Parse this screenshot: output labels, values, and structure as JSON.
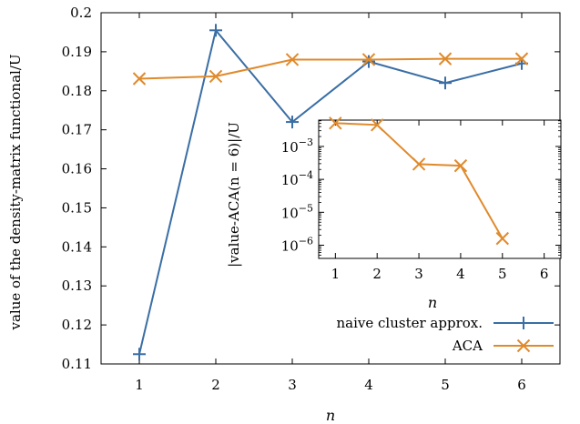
{
  "chart_data": [
    {
      "type": "line",
      "title": "",
      "xlabel": "n",
      "ylabel": "value of the density-matrix functional/U",
      "xlim": [
        0.5,
        6.5
      ],
      "ylim": [
        0.11,
        0.2
      ],
      "x_ticks": [
        "1",
        "2",
        "3",
        "4",
        "5",
        "6"
      ],
      "y_ticks": [
        "0.11",
        "0.12",
        "0.13",
        "0.14",
        "0.15",
        "0.16",
        "0.17",
        "0.18",
        "0.19",
        "0.2"
      ],
      "grid": false,
      "legend_position": "bottom-right",
      "series": [
        {
          "name": "naive cluster approx.",
          "color": "#3a6ea5",
          "marker": "plus",
          "x": [
            1,
            2,
            3,
            4,
            5,
            6
          ],
          "y": [
            0.1125,
            0.1955,
            0.172,
            0.1875,
            0.182,
            0.187
          ]
        },
        {
          "name": "ACA",
          "color": "#e08a2c",
          "marker": "cross",
          "x": [
            1,
            2,
            3,
            4,
            5,
            6
          ],
          "y": [
            0.1831,
            0.1837,
            0.188,
            0.188,
            0.1882,
            0.1882
          ]
        }
      ]
    },
    {
      "type": "line",
      "title": "",
      "xlabel": "n",
      "ylabel": "|value-ACA(n = 6)|/U",
      "xlim": [
        0.6,
        6.4
      ],
      "ylim_log10": [
        -6.4,
        -2.2
      ],
      "y_scale": "log",
      "x_ticks": [
        "1",
        "2",
        "3",
        "4",
        "5",
        "6"
      ],
      "y_ticks": [
        {
          "exp": -3,
          "label_base": "10",
          "label_exp": "−3"
        },
        {
          "exp": -4,
          "label_base": "10",
          "label_exp": "−4"
        },
        {
          "exp": -5,
          "label_base": "10",
          "label_exp": "−5"
        },
        {
          "exp": -6,
          "label_base": "10",
          "label_exp": "−6"
        }
      ],
      "series": [
        {
          "name": "ACA",
          "color": "#e08a2c",
          "marker": "cross",
          "x": [
            1,
            2,
            3,
            4,
            5
          ],
          "y": [
            0.0051,
            0.0045,
            0.00029,
            0.00026,
            1.6e-06
          ]
        }
      ]
    }
  ]
}
